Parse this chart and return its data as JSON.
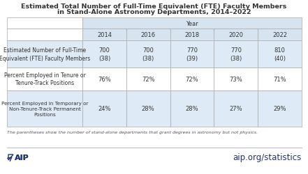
{
  "title_line1": "Estimated Total Number of Full-Time Equivalent (FTE) Faculty Members",
  "title_line2": "in Stand-Alone Astronomy Departments, 2014–2022",
  "col_header_group": "Year",
  "years": [
    "2014",
    "2016",
    "2018",
    "2020",
    "2022"
  ],
  "row_labels": [
    "Estimated Number of Full-Time\nEquivalent (FTE) Faculty Members",
    "Percent Employed in Tenure or\nTenure-Track Positions",
    "Percent Employed in Temporary or\nNon-Tenure-Track Permanent\nPositions"
  ],
  "row_data": [
    [
      "700\n(38)",
      "700\n(38)",
      "770\n(39)",
      "770\n(38)",
      "810\n(40)"
    ],
    [
      "76%",
      "72%",
      "72%",
      "73%",
      "71%"
    ],
    [
      "24%",
      "28%",
      "28%",
      "27%",
      "29%"
    ]
  ],
  "note": "The parentheses show the number of stand-alone departments that grant degrees in astronomy but not physics.",
  "footer_text": "aip.org/statistics",
  "header_bg": "#d6e4f0",
  "row_bg_even": "#deeaf5",
  "row_bg_odd": "#ffffff",
  "border_color": "#aaaaaa",
  "text_color": "#333333",
  "note_color": "#555555",
  "footer_color": "#1f3278",
  "aip_color": "#1f3278",
  "bg_color": "#ffffff",
  "title_color": "#333333"
}
